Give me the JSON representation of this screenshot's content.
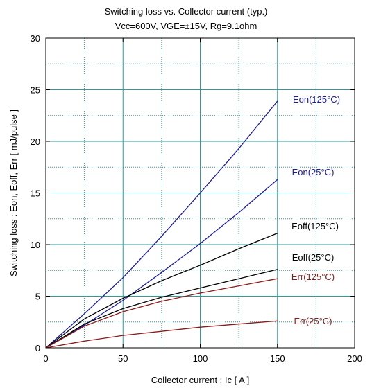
{
  "chart_data": {
    "type": "line",
    "title": "Switching loss   vs.  Collector current  (typ.)",
    "subtitle": "Vcc=600V, VGE=±15V, Rg=9.1ohm",
    "xlabel": "Collector current  :  Ic  [ A ]",
    "ylabel": "Switching loss  :  Eon, Eoff, Err  [ mJ/pulse ]",
    "xlim": [
      0,
      200
    ],
    "ylim": [
      0,
      30
    ],
    "xticks": [
      0,
      50,
      100,
      150,
      200
    ],
    "yticks": [
      0,
      5,
      10,
      15,
      20,
      25,
      30
    ],
    "grid": true,
    "colors": {
      "eon": "#1a1aa6",
      "eoff": "#000000",
      "err": "#8b1a1a",
      "grid": "#2e9a9a"
    },
    "series": [
      {
        "name": "Eon(125°C)",
        "color": "#1a1aa6",
        "x": [
          0,
          25,
          50,
          75,
          100,
          125,
          150
        ],
        "y": [
          0,
          3.3,
          6.8,
          10.8,
          15.0,
          19.3,
          23.9
        ]
      },
      {
        "name": "Eon(25°C)",
        "color": "#1a1aa6",
        "x": [
          0,
          25,
          50,
          75,
          100,
          125,
          150
        ],
        "y": [
          0,
          2.2,
          4.6,
          7.3,
          10.1,
          13.1,
          16.3
        ]
      },
      {
        "name": "Eoff(125°C)",
        "color": "#000000",
        "x": [
          0,
          25,
          50,
          75,
          100,
          125,
          150
        ],
        "y": [
          0,
          2.8,
          4.8,
          6.5,
          8.0,
          9.6,
          11.1
        ]
      },
      {
        "name": "Eoff(25°C)",
        "color": "#000000",
        "x": [
          0,
          25,
          50,
          75,
          100,
          125,
          150
        ],
        "y": [
          0,
          2.3,
          3.8,
          4.9,
          5.8,
          6.7,
          7.6
        ]
      },
      {
        "name": "Err(125°C)",
        "color": "#8b1a1a",
        "x": [
          0,
          25,
          50,
          75,
          100,
          125,
          150
        ],
        "y": [
          0,
          2.1,
          3.5,
          4.5,
          5.3,
          6.0,
          6.7
        ]
      },
      {
        "name": "Err(25°C)",
        "color": "#8b1a1a",
        "x": [
          0,
          25,
          50,
          75,
          100,
          125,
          150
        ],
        "y": [
          0,
          0.65,
          1.2,
          1.6,
          2.0,
          2.3,
          2.6
        ]
      }
    ]
  }
}
